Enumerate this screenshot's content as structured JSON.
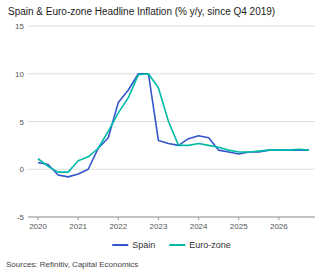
{
  "chart_data": {
    "type": "line",
    "title": "Spain & Euro-zone Headline Inflation (% y/y, since Q4 2019)",
    "annotations": [
      "Sources: Refinitiv, Capital Economics"
    ],
    "x": [
      2020.0,
      2020.25,
      2020.5,
      2020.75,
      2021.0,
      2021.25,
      2021.5,
      2021.75,
      2022.0,
      2022.25,
      2022.5,
      2022.75,
      2023.0,
      2023.25,
      2023.5,
      2023.75,
      2024.0,
      2024.25,
      2024.5,
      2024.75,
      2025.0,
      2025.25,
      2025.5,
      2025.75,
      2026.0,
      2026.25,
      2026.5,
      2026.75
    ],
    "series": [
      {
        "name": "Spain",
        "color": "#3355cc",
        "values": [
          0.7,
          0.5,
          -0.6,
          -0.8,
          -0.5,
          0.0,
          2.2,
          3.3,
          7.0,
          8.3,
          10.0,
          10.0,
          3.0,
          2.7,
          2.5,
          3.2,
          3.5,
          3.3,
          2.0,
          1.8,
          1.6,
          1.8,
          1.8,
          2.0,
          2.0,
          2.0,
          2.0,
          2.0
        ]
      },
      {
        "name": "Euro-zone",
        "color": "#00bba8",
        "values": [
          1.1,
          0.3,
          -0.3,
          -0.3,
          0.9,
          1.3,
          2.2,
          4.0,
          5.9,
          7.5,
          9.9,
          10.0,
          8.5,
          5.0,
          2.5,
          2.5,
          2.7,
          2.5,
          2.3,
          2.0,
          1.8,
          1.8,
          1.9,
          2.0,
          2.0,
          2.0,
          2.1,
          2.0
        ]
      }
    ],
    "xlim": [
      2019.75,
      2026.9
    ],
    "xticks": [
      2020,
      2021,
      2022,
      2023,
      2024,
      2025,
      2026
    ],
    "ylim": [
      -5,
      15
    ],
    "yticks": [
      -5,
      0,
      5,
      10,
      15
    ],
    "grid": true,
    "legend": "bottom"
  }
}
